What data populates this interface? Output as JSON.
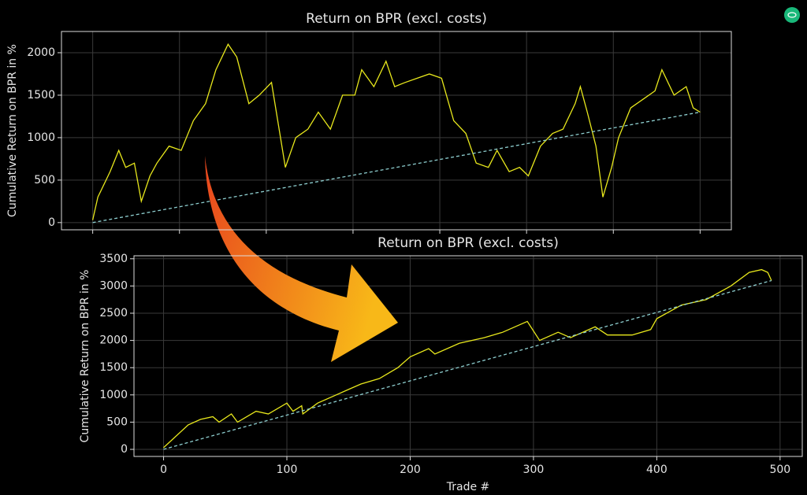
{
  "chart_data": [
    {
      "type": "line",
      "title": "Return on BPR (excl. costs)",
      "y_label": "Cumulative Return on BPR in %",
      "xlim": [
        -18,
        368
      ],
      "ylim": [
        -85,
        2250
      ],
      "x_gridlines": [
        0,
        50,
        100,
        150,
        200,
        250,
        300,
        350
      ],
      "yticks": [
        0,
        500,
        1000,
        1500,
        2000
      ],
      "grid": true,
      "series": [
        {
          "color": "#e8e81c",
          "dashed": false,
          "x": [
            0,
            3,
            10,
            15,
            19,
            24,
            28,
            33,
            37,
            44,
            51,
            58,
            65,
            71,
            78,
            83,
            90,
            96,
            103,
            111,
            117,
            124,
            130,
            137,
            144,
            151,
            155,
            162,
            169,
            174,
            180,
            187,
            194,
            201,
            208,
            215,
            221,
            228,
            233,
            240,
            246,
            251,
            258,
            265,
            271,
            278,
            281,
            285,
            290,
            294,
            299,
            303,
            310,
            317,
            324,
            328,
            335,
            342,
            346,
            350
          ],
          "values": [
            30,
            300,
            600,
            850,
            650,
            700,
            250,
            550,
            700,
            900,
            850,
            1200,
            1400,
            1800,
            2100,
            1950,
            1400,
            1500,
            1650,
            650,
            1000,
            1100,
            1300,
            1100,
            1500,
            1500,
            1800,
            1600,
            1900,
            1600,
            1650,
            1700,
            1750,
            1700,
            1200,
            1050,
            700,
            650,
            850,
            600,
            650,
            550,
            900,
            1050,
            1100,
            1400,
            1600,
            1300,
            900,
            300,
            650,
            1000,
            1350,
            1450,
            1550,
            1800,
            1500,
            1600,
            1350,
            1300
          ]
        },
        {
          "color": "#8ecfd0",
          "dashed": true,
          "x": [
            0,
            350
          ],
          "values": [
            0,
            1300
          ]
        }
      ]
    },
    {
      "type": "line",
      "title": "Return on BPR (excl. costs)",
      "y_label": "Cumulative Return on BPR in %",
      "x_label": "Trade #",
      "xlim": [
        -24,
        518
      ],
      "ylim": [
        -130,
        3555
      ],
      "xticks": [
        0,
        100,
        200,
        300,
        400,
        500
      ],
      "yticks": [
        0,
        500,
        1000,
        1500,
        2000,
        2500,
        3000,
        3500
      ],
      "grid": true,
      "series": [
        {
          "color": "#e8e81c",
          "dashed": false,
          "x": [
            0,
            20,
            30,
            40,
            45,
            55,
            60,
            75,
            85,
            100,
            105,
            112,
            113,
            125,
            140,
            150,
            160,
            175,
            190,
            200,
            215,
            220,
            240,
            260,
            275,
            295,
            305,
            320,
            330,
            350,
            360,
            380,
            395,
            400,
            420,
            440,
            460,
            475,
            485,
            490,
            493
          ],
          "values": [
            30,
            450,
            550,
            600,
            500,
            650,
            500,
            700,
            650,
            850,
            700,
            800,
            650,
            850,
            1000,
            1100,
            1200,
            1300,
            1500,
            1700,
            1850,
            1750,
            1950,
            2050,
            2150,
            2350,
            2000,
            2150,
            2050,
            2250,
            2100,
            2100,
            2200,
            2400,
            2650,
            2750,
            3000,
            3250,
            3300,
            3250,
            3100
          ]
        },
        {
          "color": "#8ecfd0",
          "dashed": true,
          "x": [
            0,
            493
          ],
          "values": [
            0,
            3100
          ]
        }
      ]
    }
  ]
}
